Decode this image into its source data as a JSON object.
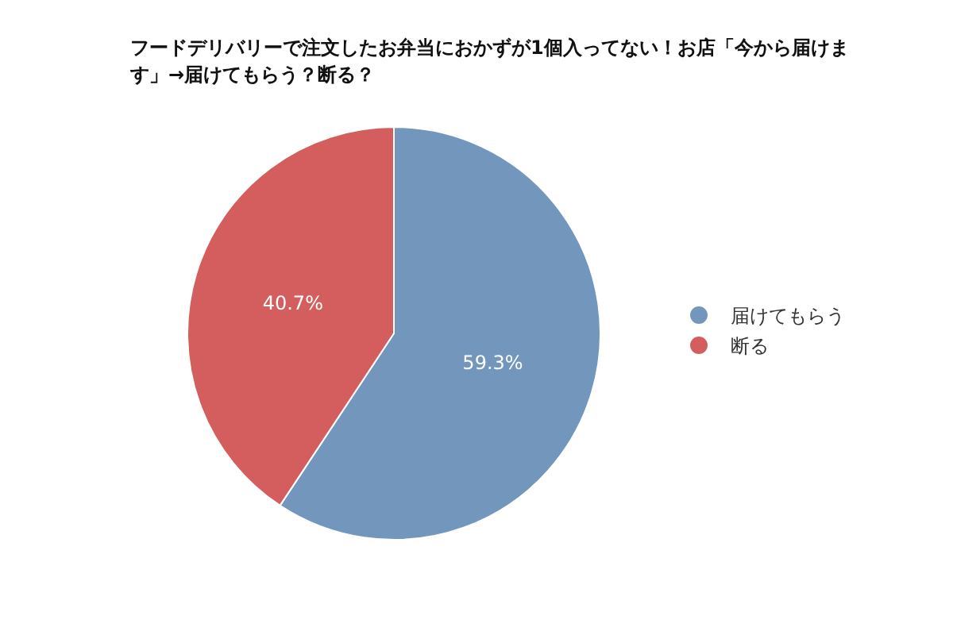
{
  "chart_data": {
    "type": "pie",
    "title": "フードデリバリーで注文したお弁当におかずが1個入ってない！お店「今から届けます」→届けてもらう？断る？",
    "categories": [
      "届けてもらう",
      "断る"
    ],
    "values": [
      59.3,
      40.7
    ],
    "colors": [
      "#7396bc",
      "#d45e5e"
    ],
    "value_labels": [
      "59.3%",
      "40.7%"
    ],
    "legend": "right"
  }
}
